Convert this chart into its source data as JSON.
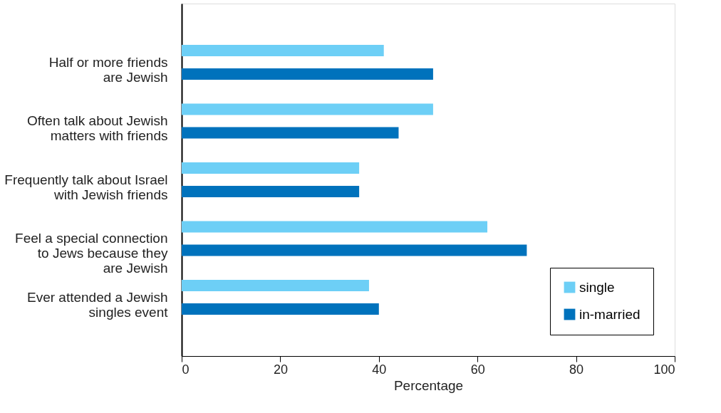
{
  "chart_data": {
    "type": "bar",
    "orientation": "horizontal",
    "xlabel": "Percentage",
    "categories": [
      "Half or more friends\nare Jewish",
      "Often talk about Jewish\nmatters with friends",
      "Frequently talk about Israel\nwith Jewish friends",
      "Feel a special connection\nto Jews because they\nare Jewish",
      "Ever attended a Jewish\nsingles event"
    ],
    "series": [
      {
        "name": "single",
        "color": "#6dcff6",
        "values": [
          41,
          51,
          36,
          62,
          38
        ]
      },
      {
        "name": "in-married",
        "color": "#0072bc",
        "values": [
          51,
          44,
          36,
          70,
          40
        ]
      }
    ],
    "xlim": [
      0,
      100
    ],
    "xticks": [
      0,
      20,
      40,
      60,
      80,
      100
    ],
    "grid": false,
    "legend": "bottom right"
  }
}
